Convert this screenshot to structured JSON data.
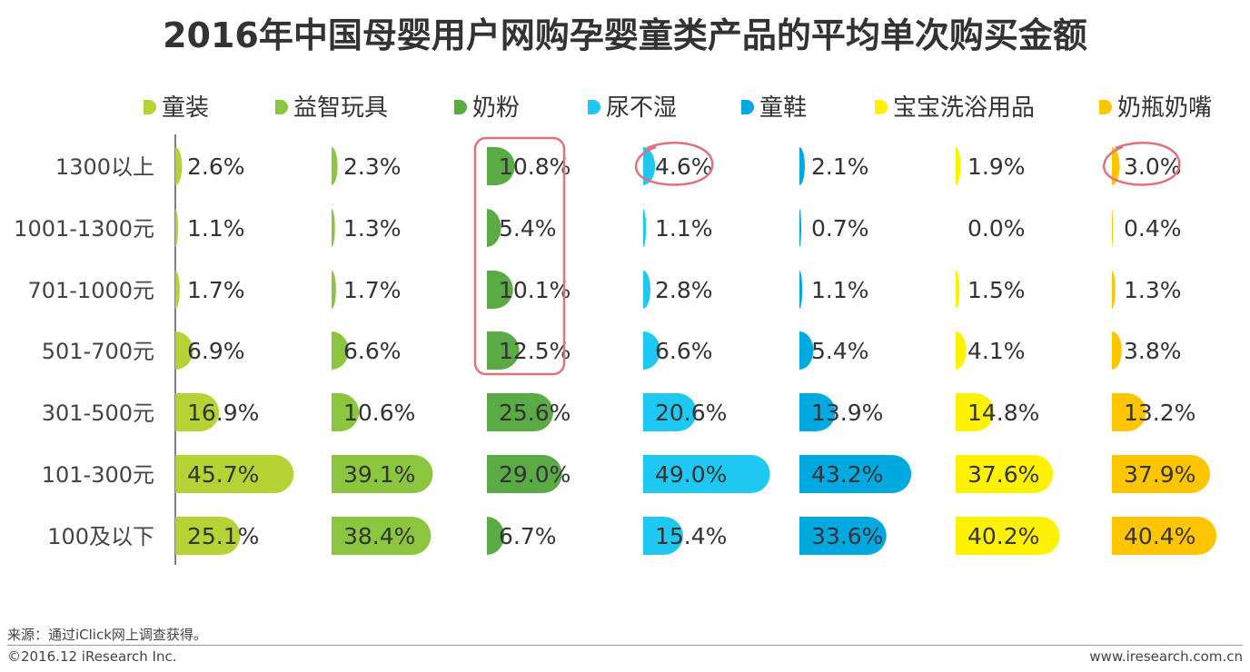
{
  "title": "2016年中国母婴用户网购孕婴童类产品的平均单次购买金额",
  "source": "来源：通过iClick网上调查获得。",
  "copyright": "©2016.12 iResearch Inc.",
  "website": "www.iresearch.com.cn",
  "chart_data": {
    "type": "bar",
    "title": "2016年中国母婴用户网购孕婴童类产品的平均单次购买金额",
    "categories": [
      "1300以上",
      "1001-1300元",
      "701-1000元",
      "501-700元",
      "301-500元",
      "101-300元",
      "100及以下"
    ],
    "series": [
      {
        "name": "童装",
        "color": "#b5d335",
        "values": [
          2.6,
          1.1,
          1.7,
          6.9,
          16.9,
          45.7,
          25.1
        ],
        "labels": [
          "2.6%",
          "1.1%",
          "1.7%",
          "6.9%",
          "16.9%",
          "45.7%",
          "25.1%"
        ]
      },
      {
        "name": "益智玩具",
        "color": "#8cc63f",
        "values": [
          2.3,
          1.3,
          1.7,
          6.6,
          10.6,
          39.1,
          38.4
        ],
        "labels": [
          "2.3%",
          "1.3%",
          "1.7%",
          "6.6%",
          "10.6%",
          "39.1%",
          "38.4%"
        ]
      },
      {
        "name": "奶粉",
        "color": "#5aab46",
        "values": [
          10.8,
          5.4,
          10.1,
          12.5,
          25.6,
          29.0,
          6.7
        ],
        "labels": [
          "10.8%",
          "5.4%",
          "10.1%",
          "12.5%",
          "25.6%",
          "29.0%",
          "6.7%"
        ]
      },
      {
        "name": "尿不湿",
        "color": "#1fc8f0",
        "values": [
          4.6,
          1.1,
          2.8,
          6.6,
          20.6,
          49.0,
          15.4
        ],
        "labels": [
          "4.6%",
          "1.1%",
          "2.8%",
          "6.6%",
          "20.6%",
          "49.0%",
          "15.4%"
        ]
      },
      {
        "name": "童鞋",
        "color": "#00a9e0",
        "values": [
          2.1,
          0.7,
          1.1,
          5.4,
          13.9,
          43.2,
          33.6
        ],
        "labels": [
          "2.1%",
          "0.7%",
          "1.1%",
          "5.4%",
          "13.9%",
          "43.2%",
          "33.6%"
        ]
      },
      {
        "name": "宝宝洗浴用品",
        "color": "#fff200",
        "values": [
          1.9,
          0.0,
          1.5,
          4.1,
          14.8,
          37.6,
          40.2
        ],
        "labels": [
          "1.9%",
          "0.0%",
          "1.5%",
          "4.1%",
          "14.8%",
          "37.6%",
          "40.2%"
        ]
      },
      {
        "name": "奶瓶奶嘴",
        "color": "#ffc600",
        "values": [
          3.0,
          0.4,
          1.3,
          3.8,
          13.2,
          37.9,
          40.4
        ],
        "labels": [
          "3.0%",
          "0.4%",
          "1.3%",
          "3.8%",
          "13.2%",
          "37.9%",
          "40.4%"
        ]
      }
    ],
    "annotation_color": "#e0727f",
    "legend_position": "top",
    "grid": false
  }
}
